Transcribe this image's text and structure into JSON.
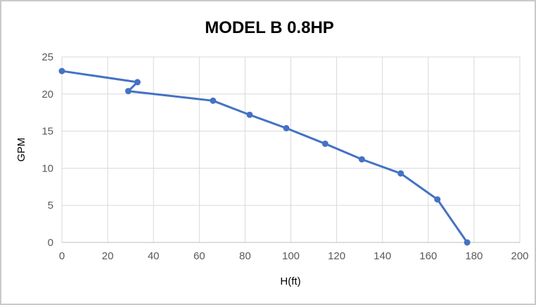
{
  "chart_data": {
    "type": "line",
    "title": "MODEL B 0.8HP",
    "xlabel": "H(ft)",
    "ylabel": "GPM",
    "xlim": [
      0,
      200
    ],
    "ylim": [
      0,
      25
    ],
    "x_ticks": [
      0,
      20,
      40,
      60,
      80,
      100,
      120,
      140,
      160,
      180,
      200
    ],
    "y_ticks": [
      0,
      5,
      10,
      15,
      20,
      25
    ],
    "grid": true,
    "legend_position": "none",
    "series": [
      {
        "name": "MODEL B 0.8HP",
        "x": [
          0,
          33,
          29,
          66,
          82,
          98,
          115,
          131,
          148,
          164,
          177
        ],
        "y": [
          23.1,
          21.6,
          20.4,
          19.1,
          17.2,
          15.4,
          13.3,
          11.2,
          9.3,
          5.8,
          0
        ],
        "color": "#4472C4",
        "marker": "circle"
      }
    ]
  },
  "colors": {
    "line": "#4472C4",
    "gridline": "#D9D9D9",
    "plot_border": "#D9D9D9",
    "axis_line": "#BFBFBF",
    "tick_label": "#595959",
    "axis_title": "#595959",
    "chart_title": "#404040",
    "background": "#FFFFFF",
    "window_border": "#C9C9C9"
  }
}
